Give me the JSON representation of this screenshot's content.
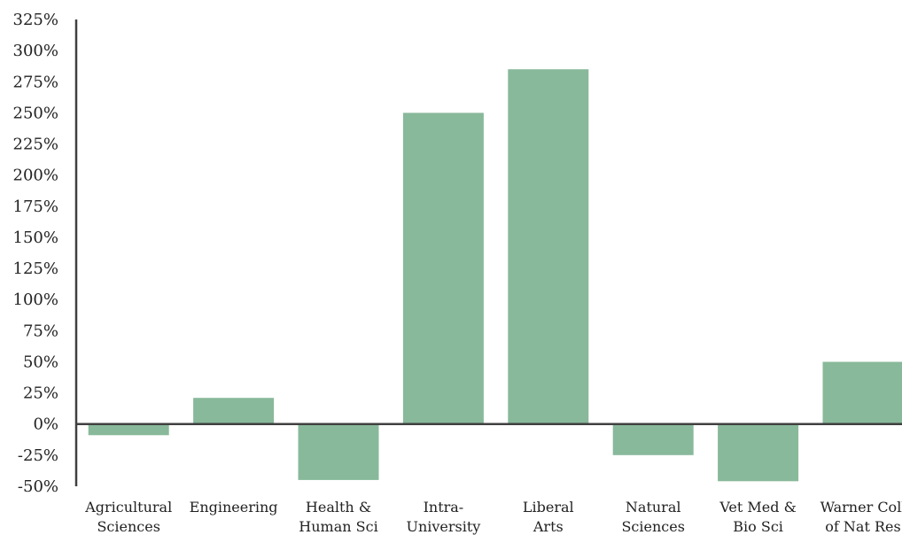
{
  "chart_data": {
    "type": "bar",
    "title": "",
    "xlabel": "",
    "ylabel": "",
    "ylim": [
      -50,
      325
    ],
    "y_ticks": [
      325,
      300,
      275,
      250,
      225,
      200,
      175,
      150,
      125,
      100,
      75,
      50,
      25,
      0,
      -25,
      -50
    ],
    "y_tick_labels": [
      "325%",
      "300%",
      "275%",
      "250%",
      "225%",
      "200%",
      "175%",
      "150%",
      "125%",
      "100%",
      "75%",
      "50%",
      "25%",
      "0%",
      "-25%",
      "-50%"
    ],
    "categories": [
      [
        "Agricultural",
        "Sciences"
      ],
      [
        "Engineering"
      ],
      [
        "Health &",
        "Human Sci"
      ],
      [
        "Intra-",
        "University"
      ],
      [
        "Liberal",
        "Arts"
      ],
      [
        "Natural",
        "Sciences"
      ],
      [
        "Vet Med &",
        "Bio Sci"
      ],
      [
        "Warner Coll",
        "of Nat Res"
      ]
    ],
    "values": [
      -9,
      21,
      -45,
      250,
      285,
      -25,
      -46,
      50
    ],
    "bar_color": "#88b99a",
    "axis_color": "#404040",
    "grid": false,
    "legend": "none"
  }
}
